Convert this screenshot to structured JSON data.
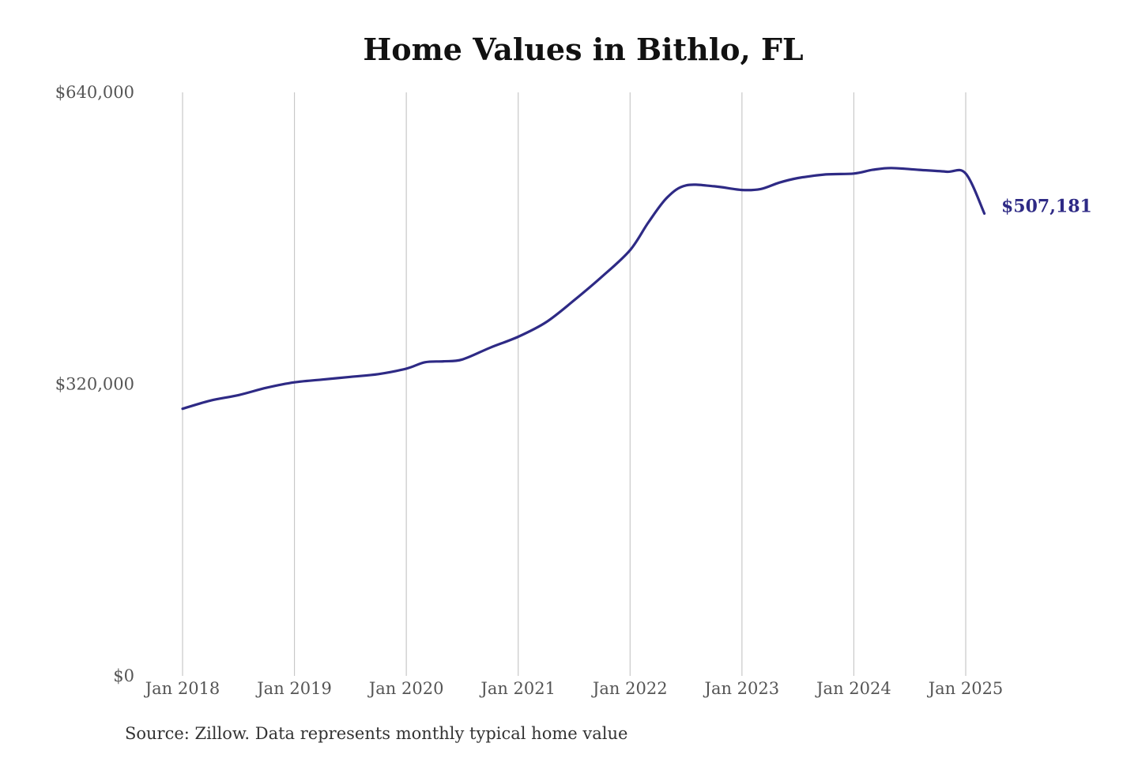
{
  "chart_data": {
    "type": "line",
    "title": "Home Values in Bithlo, FL",
    "xlabel": "",
    "ylabel": "",
    "ylim": [
      0,
      640000
    ],
    "xlim": [
      "2018-01",
      "2025-03"
    ],
    "y_ticks": [
      "$640,000",
      "$320,000",
      "$0"
    ],
    "y_tick_values": [
      640000,
      320000,
      0
    ],
    "x_ticks": [
      "Jan 2018",
      "Jan 2019",
      "Jan 2020",
      "Jan 2021",
      "Jan 2022",
      "Jan 2023",
      "Jan 2024",
      "Jan 2025"
    ],
    "x_tick_values": [
      "2018-01",
      "2019-01",
      "2020-01",
      "2021-01",
      "2022-01",
      "2023-01",
      "2024-01",
      "2025-01"
    ],
    "grid": "vertical",
    "series": [
      {
        "color": "#2e2a85",
        "x": [
          "2018-01",
          "2018-04",
          "2018-07",
          "2018-10",
          "2019-01",
          "2019-04",
          "2019-07",
          "2019-10",
          "2020-01",
          "2020-03",
          "2020-05",
          "2020-07",
          "2020-10",
          "2021-01",
          "2021-04",
          "2021-07",
          "2021-10",
          "2022-01",
          "2022-03",
          "2022-05",
          "2022-07",
          "2022-10",
          "2023-01",
          "2023-03",
          "2023-05",
          "2023-07",
          "2023-10",
          "2024-01",
          "2024-03",
          "2024-05",
          "2024-08",
          "2024-11",
          "2025-01",
          "2025-03"
        ],
        "values": [
          293000,
          302000,
          308000,
          316000,
          322000,
          325000,
          328000,
          331000,
          337000,
          344000,
          345000,
          347000,
          360000,
          372000,
          388000,
          412000,
          438000,
          467000,
          498000,
          525000,
          538000,
          537000,
          533000,
          534000,
          541000,
          546000,
          550000,
          551000,
          555000,
          557000,
          555000,
          553000,
          551000,
          507181
        ]
      }
    ],
    "end_label": "$507,181"
  },
  "source_note": "Source: Zillow. Data represents monthly typical home value"
}
